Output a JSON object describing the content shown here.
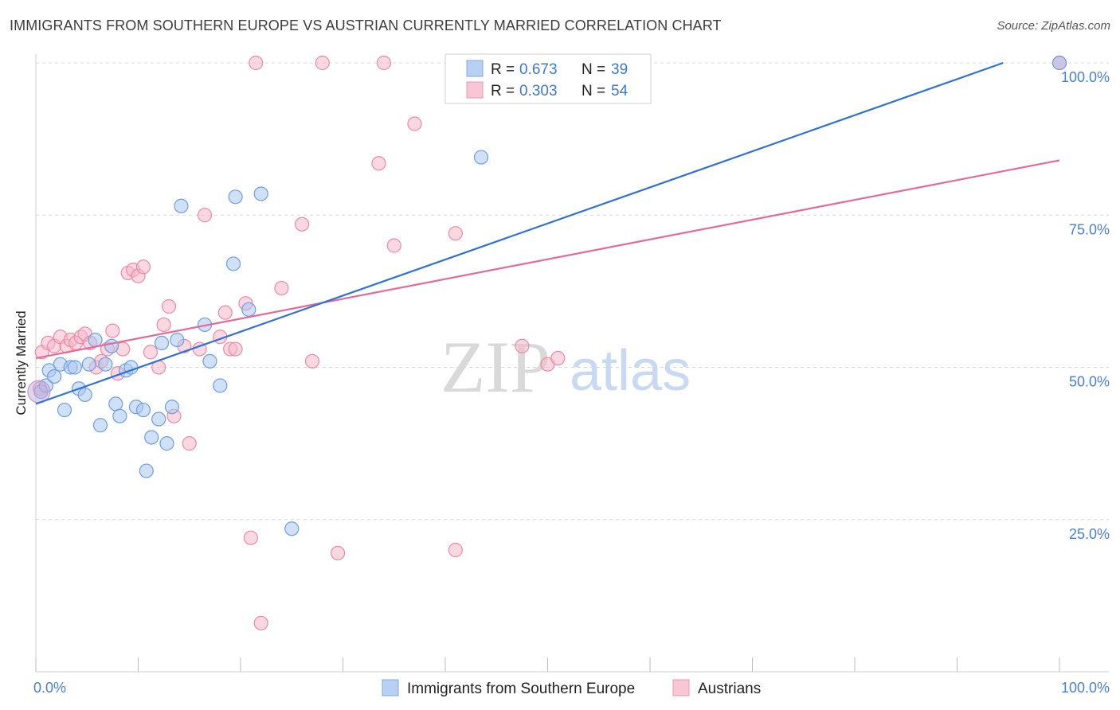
{
  "title": "IMMIGRANTS FROM SOUTHERN EUROPE VS AUSTRIAN CURRENTLY MARRIED CORRELATION CHART",
  "source": "Source: ZipAtlas.com",
  "watermark": {
    "zip": "ZIP",
    "atlas": "atlas"
  },
  "colors": {
    "blue_fill": "#a9c6ee",
    "blue_stroke": "#6f9ee0",
    "blue_line": "#2f72d2",
    "pink_fill": "#f6b8cb",
    "pink_stroke": "#ea8aa8",
    "pink_line": "#e46a98",
    "grid": "#d8d8d8",
    "axis_text": "#4a7fd0"
  },
  "legend": {
    "rows": [
      {
        "r_label": "R = ",
        "r_value": "0.673",
        "n_label": "N = ",
        "n_value": "39"
      },
      {
        "r_label": "R = ",
        "r_value": "0.303",
        "n_label": "N = ",
        "n_value": "54"
      }
    ]
  },
  "chart_data": {
    "type": "scatter",
    "title": "IMMIGRANTS FROM SOUTHERN EUROPE VS AUSTRIAN CURRENTLY MARRIED CORRELATION CHART",
    "xlabel": "",
    "ylabel": "Currently Married",
    "xlim": [
      0,
      100
    ],
    "ylim": [
      0,
      100
    ],
    "x_tick_labels": [
      "0.0%",
      "100.0%"
    ],
    "y_tick_labels": [
      "100.0%",
      "75.0%",
      "50.0%",
      "25.0%"
    ],
    "y_ticks": [
      100,
      75,
      50,
      25
    ],
    "grid": true,
    "legend_position": "top-center",
    "series": [
      {
        "name": "Immigrants from Southern Europe",
        "color": "blue",
        "r": "0.673",
        "n": "39",
        "trend": {
          "x0": 0,
          "y0": 44,
          "x1": 94.5,
          "y1": 100
        },
        "points": [
          [
            0.5,
            46
          ],
          [
            1.0,
            47
          ],
          [
            1.3,
            49.5
          ],
          [
            1.8,
            48.5
          ],
          [
            2.4,
            50.5
          ],
          [
            2.8,
            43
          ],
          [
            3.4,
            50
          ],
          [
            3.8,
            50
          ],
          [
            4.2,
            46.5
          ],
          [
            4.8,
            45.5
          ],
          [
            5.2,
            50.5
          ],
          [
            5.8,
            54.5
          ],
          [
            6.3,
            40.5
          ],
          [
            6.8,
            50.5
          ],
          [
            7.4,
            53.5
          ],
          [
            7.8,
            44
          ],
          [
            8.2,
            42
          ],
          [
            8.8,
            49.5
          ],
          [
            9.3,
            50
          ],
          [
            9.8,
            43.5
          ],
          [
            10.5,
            43
          ],
          [
            10.8,
            33
          ],
          [
            11.3,
            38.5
          ],
          [
            12.0,
            41.5
          ],
          [
            12.3,
            54
          ],
          [
            12.8,
            37.5
          ],
          [
            13.3,
            43.5
          ],
          [
            13.8,
            54.5
          ],
          [
            14.2,
            76.5
          ],
          [
            16.5,
            57
          ],
          [
            17.0,
            51
          ],
          [
            18.0,
            47
          ],
          [
            19.3,
            67
          ],
          [
            19.5,
            78
          ],
          [
            20.8,
            59.5
          ],
          [
            22.0,
            78.5
          ],
          [
            25.0,
            23.5
          ],
          [
            43.5,
            84.5
          ],
          [
            100,
            100
          ]
        ]
      },
      {
        "name": "Austrians",
        "color": "pink",
        "r": "0.303",
        "n": "54",
        "trend": {
          "x0": 0,
          "y0": 51.5,
          "x1": 100,
          "y1": 84
        },
        "points": [
          [
            0.4,
            46.5
          ],
          [
            0.6,
            52.5
          ],
          [
            1.2,
            54
          ],
          [
            1.8,
            53.5
          ],
          [
            2.4,
            55
          ],
          [
            3.0,
            53.5
          ],
          [
            3.4,
            54.5
          ],
          [
            3.9,
            54
          ],
          [
            4.4,
            55
          ],
          [
            4.8,
            55.5
          ],
          [
            5.3,
            54
          ],
          [
            5.9,
            50
          ],
          [
            6.4,
            51
          ],
          [
            7.0,
            53
          ],
          [
            7.5,
            56
          ],
          [
            8.0,
            49
          ],
          [
            8.5,
            53
          ],
          [
            9.0,
            65.5
          ],
          [
            9.5,
            66
          ],
          [
            10.0,
            65
          ],
          [
            10.5,
            66.5
          ],
          [
            11.2,
            52.5
          ],
          [
            12.0,
            50
          ],
          [
            12.5,
            57
          ],
          [
            13.0,
            60
          ],
          [
            13.5,
            42
          ],
          [
            14.5,
            53.5
          ],
          [
            15.0,
            37.5
          ],
          [
            16.0,
            53
          ],
          [
            16.5,
            75
          ],
          [
            18.0,
            55
          ],
          [
            18.5,
            59
          ],
          [
            19.0,
            53
          ],
          [
            19.5,
            53
          ],
          [
            20.5,
            60.5
          ],
          [
            21.0,
            22
          ],
          [
            21.5,
            100
          ],
          [
            22.0,
            8
          ],
          [
            24.0,
            63
          ],
          [
            26.0,
            73.5
          ],
          [
            27.0,
            51
          ],
          [
            28.0,
            100
          ],
          [
            29.5,
            19.5
          ],
          [
            33.5,
            83.5
          ],
          [
            34.0,
            100
          ],
          [
            35.0,
            70
          ],
          [
            37.0,
            90
          ],
          [
            41.0,
            20
          ],
          [
            41.0,
            72
          ],
          [
            47.5,
            53.5
          ],
          [
            50.0,
            50.5
          ],
          [
            51.0,
            51.5
          ],
          [
            100,
            100
          ],
          [
            100,
            100
          ]
        ]
      }
    ]
  },
  "bottom_legend": [
    "Immigrants from Southern Europe",
    "Austrians"
  ]
}
